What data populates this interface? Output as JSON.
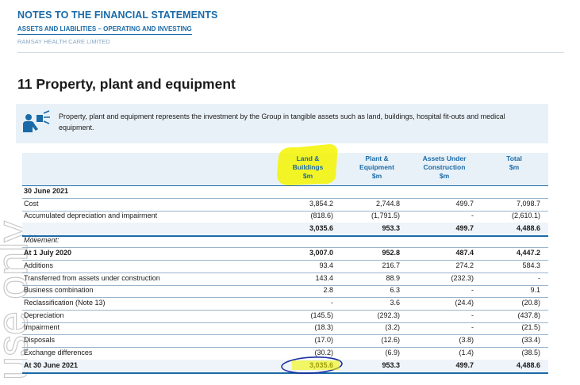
{
  "header": {
    "title": "NOTES TO THE FINANCIAL STATEMENTS",
    "subtitle": "ASSETS AND LIABILITIES – OPERATING AND INVESTING",
    "company": "RAMSAY HEALTH CARE LIMITED"
  },
  "section": {
    "title": "11 Property, plant and equipment"
  },
  "intro": {
    "icon": "building-person-icon",
    "text": "Property, plant and equipment represents the investment by the Group in tangible assets such as land, buildings, hospital fit-outs and medical equipment."
  },
  "table": {
    "columns": [
      {
        "line1": "Land &",
        "line2": "Buildings",
        "line3": "$m"
      },
      {
        "line1": "Plant &",
        "line2": "Equipment",
        "line3": "$m"
      },
      {
        "line1": "Assets Under",
        "line2": "Construction",
        "line3": "$m"
      },
      {
        "line1": "",
        "line2": "Total",
        "line3": "$m"
      }
    ],
    "rows": [
      {
        "label": "30 June 2021",
        "style": "bold",
        "values": [
          "",
          "",
          "",
          ""
        ]
      },
      {
        "label": "Cost",
        "style": "",
        "values": [
          "3,854.2",
          "2,744.8",
          "499.7",
          "7,098.7"
        ]
      },
      {
        "label": "Accumulated depreciation and impairment",
        "style": "",
        "values": [
          "(818.6)",
          "(1,791.5)",
          "-",
          "(2,610.1)"
        ]
      },
      {
        "label": "",
        "style": "bold",
        "values": [
          "3,035.6",
          "953.3",
          "499.7",
          "4,488.6"
        ]
      },
      {
        "label": "Movement:",
        "style": "italic",
        "values": [
          "",
          "",
          "",
          ""
        ]
      },
      {
        "label": "At 1 July 2020",
        "style": "bold",
        "values": [
          "3,007.0",
          "952.8",
          "487.4",
          "4,447.2"
        ]
      },
      {
        "label": "Additions",
        "style": "",
        "values": [
          "93.4",
          "216.7",
          "274.2",
          "584.3"
        ]
      },
      {
        "label": "Transferred from assets under construction",
        "style": "",
        "values": [
          "143.4",
          "88.9",
          "(232.3)",
          "-"
        ]
      },
      {
        "label": "Business combination",
        "style": "",
        "values": [
          "2.8",
          "6.3",
          "-",
          "9.1"
        ]
      },
      {
        "label": "Reclassification (Note 13)",
        "style": "",
        "values": [
          "-",
          "3.6",
          "(24.4)",
          "(20.8)"
        ]
      },
      {
        "label": "Depreciation",
        "style": "",
        "values": [
          "(145.5)",
          "(292.3)",
          "-",
          "(437.8)"
        ]
      },
      {
        "label": "Impairment",
        "style": "",
        "values": [
          "(18.3)",
          "(3.2)",
          "-",
          "(21.5)"
        ]
      },
      {
        "label": "Disposals",
        "style": "",
        "values": [
          "(17.0)",
          "(12.6)",
          "(3.8)",
          "(33.4)"
        ]
      },
      {
        "label": "Exchange differences",
        "style": "",
        "values": [
          "(30.2)",
          "(6.9)",
          "(1.4)",
          "(38.5)"
        ]
      },
      {
        "label": "At 30 June 2021",
        "style": "bold",
        "values": [
          "3,035.6",
          "953.3",
          "499.7",
          "4,488.6"
        ]
      }
    ]
  },
  "colors": {
    "brand": "#1a6aa8",
    "highlight": "#f5f500",
    "pen": "#1a2fa0"
  }
}
